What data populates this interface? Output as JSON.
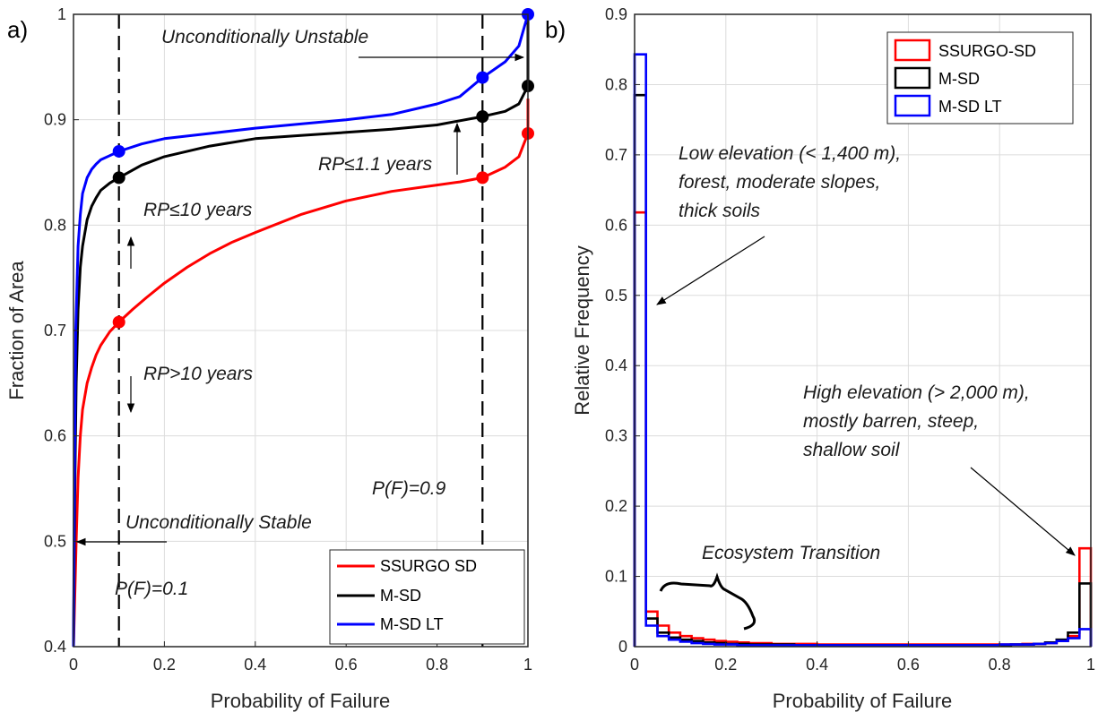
{
  "chart_data": [
    {
      "panel_label": "a)",
      "type": "line",
      "xlabel": "Probability of Failure",
      "ylabel": "Fraction of Area",
      "xlim": [
        0,
        1
      ],
      "ylim": [
        0.4,
        1
      ],
      "xticks": [
        0,
        0.2,
        0.4,
        0.6,
        0.8,
        1
      ],
      "xtick_labels": [
        "0",
        "0.2",
        "0.4",
        "0.6",
        "0.8",
        "1"
      ],
      "yticks": [
        0.4,
        0.5,
        0.6,
        0.7,
        0.8,
        0.9,
        1
      ],
      "ytick_labels": [
        "0.4",
        "0.5",
        "0.6",
        "0.7",
        "0.8",
        "0.9",
        "1"
      ],
      "grid": true,
      "legend_position": "bottom-right",
      "series": [
        {
          "name": "SSURGO SD",
          "color": "#ff0000",
          "x": [
            0,
            0.003,
            0.006,
            0.01,
            0.015,
            0.02,
            0.03,
            0.04,
            0.05,
            0.06,
            0.08,
            0.1,
            0.13,
            0.16,
            0.2,
            0.25,
            0.3,
            0.35,
            0.4,
            0.5,
            0.6,
            0.7,
            0.8,
            0.85,
            0.9,
            0.95,
            0.98,
            1,
            1
          ],
          "y": [
            0.4,
            0.45,
            0.5,
            0.56,
            0.6,
            0.625,
            0.65,
            0.665,
            0.677,
            0.686,
            0.699,
            0.708,
            0.72,
            0.731,
            0.745,
            0.76,
            0.773,
            0.784,
            0.793,
            0.81,
            0.823,
            0.832,
            0.838,
            0.841,
            0.845,
            0.855,
            0.865,
            0.887,
            0.92
          ],
          "markers": [
            {
              "x": 0.1,
              "y": 0.708
            },
            {
              "x": 0.9,
              "y": 0.845
            },
            {
              "x": 1,
              "y": 0.887
            }
          ]
        },
        {
          "name": "M-SD",
          "color": "#000000",
          "x": [
            0,
            0.003,
            0.006,
            0.01,
            0.015,
            0.02,
            0.03,
            0.04,
            0.05,
            0.06,
            0.08,
            0.1,
            0.15,
            0.2,
            0.3,
            0.4,
            0.5,
            0.6,
            0.7,
            0.8,
            0.9,
            0.95,
            0.98,
            1,
            1
          ],
          "y": [
            0.4,
            0.55,
            0.65,
            0.72,
            0.76,
            0.78,
            0.805,
            0.818,
            0.826,
            0.833,
            0.84,
            0.845,
            0.857,
            0.865,
            0.875,
            0.882,
            0.885,
            0.888,
            0.891,
            0.895,
            0.903,
            0.908,
            0.915,
            0.932,
            1
          ],
          "markers": [
            {
              "x": 0.1,
              "y": 0.845
            },
            {
              "x": 0.9,
              "y": 0.903
            },
            {
              "x": 1,
              "y": 0.932
            }
          ]
        },
        {
          "name": "M-SD LT",
          "color": "#0000ff",
          "x": [
            0,
            0.002,
            0.005,
            0.01,
            0.015,
            0.02,
            0.03,
            0.04,
            0.05,
            0.06,
            0.08,
            0.1,
            0.15,
            0.2,
            0.3,
            0.4,
            0.5,
            0.6,
            0.7,
            0.8,
            0.85,
            0.9,
            0.95,
            0.98,
            1
          ],
          "y": [
            0.4,
            0.55,
            0.7,
            0.78,
            0.81,
            0.83,
            0.845,
            0.853,
            0.858,
            0.862,
            0.866,
            0.87,
            0.877,
            0.882,
            0.887,
            0.892,
            0.896,
            0.9,
            0.905,
            0.915,
            0.922,
            0.94,
            0.955,
            0.97,
            1
          ],
          "markers": [
            {
              "x": 0.1,
              "y": 0.87
            },
            {
              "x": 0.9,
              "y": 0.94
            },
            {
              "x": 1,
              "y": 1
            }
          ]
        }
      ],
      "vlines": [
        {
          "x": 0.1,
          "label": "P(F)=0.1"
        },
        {
          "x": 0.9,
          "label": "P(F)=0.9"
        }
      ],
      "annotations": {
        "unconditionally_unstable": "Unconditionally Unstable",
        "unconditionally_stable": "Unconditionally Stable",
        "rp_le_10": "RP≤10 years",
        "rp_gt_10": "RP>10 years",
        "rp_le_1_1": "RP≤1.1 years"
      }
    },
    {
      "panel_label": "b)",
      "type": "bar",
      "subtype": "histogram-stairs",
      "xlabel": "Probability of Failure",
      "ylabel": "Relative Frequency",
      "xlim": [
        0,
        1
      ],
      "ylim": [
        0,
        0.9
      ],
      "xticks": [
        0,
        0.2,
        0.4,
        0.6,
        0.8,
        1
      ],
      "xtick_labels": [
        "0",
        "0.2",
        "0.4",
        "0.6",
        "0.8",
        "1"
      ],
      "yticks": [
        0,
        0.1,
        0.2,
        0.3,
        0.4,
        0.5,
        0.6,
        0.7,
        0.8,
        0.9
      ],
      "ytick_labels": [
        "0",
        "0.1",
        "0.2",
        "0.3",
        "0.4",
        "0.5",
        "0.6",
        "0.7",
        "0.8",
        "0.9"
      ],
      "grid": true,
      "legend_position": "top-right",
      "bin_width": 0.025,
      "series": [
        {
          "name": "SSURGO-SD",
          "color": "#ff0000",
          "values": [
            0.618,
            0.05,
            0.03,
            0.02,
            0.015,
            0.012,
            0.01,
            0.008,
            0.007,
            0.006,
            0.005,
            0.005,
            0.004,
            0.004,
            0.004,
            0.004,
            0.003,
            0.003,
            0.003,
            0.003,
            0.003,
            0.003,
            0.003,
            0.003,
            0.003,
            0.003,
            0.003,
            0.003,
            0.003,
            0.003,
            0.003,
            0.003,
            0.003,
            0.003,
            0.004,
            0.004,
            0.005,
            0.008,
            0.015,
            0.14
          ]
        },
        {
          "name": "M-SD",
          "color": "#000000",
          "values": [
            0.785,
            0.04,
            0.02,
            0.013,
            0.01,
            0.008,
            0.006,
            0.005,
            0.004,
            0.004,
            0.003,
            0.003,
            0.003,
            0.003,
            0.002,
            0.002,
            0.002,
            0.002,
            0.002,
            0.002,
            0.002,
            0.002,
            0.002,
            0.002,
            0.002,
            0.002,
            0.002,
            0.002,
            0.002,
            0.002,
            0.002,
            0.002,
            0.002,
            0.003,
            0.003,
            0.004,
            0.006,
            0.01,
            0.02,
            0.09
          ]
        },
        {
          "name": "M-SD LT",
          "color": "#0000ff",
          "values": [
            0.843,
            0.03,
            0.015,
            0.01,
            0.007,
            0.005,
            0.004,
            0.003,
            0.003,
            0.002,
            0.002,
            0.002,
            0.002,
            0.002,
            0.002,
            0.002,
            0.002,
            0.002,
            0.002,
            0.002,
            0.002,
            0.002,
            0.002,
            0.002,
            0.002,
            0.002,
            0.002,
            0.002,
            0.002,
            0.002,
            0.002,
            0.002,
            0.003,
            0.003,
            0.003,
            0.004,
            0.005,
            0.008,
            0.012,
            0.025
          ]
        }
      ],
      "annotations": {
        "low_elevation": [
          "Low elevation (< 1,400 m),",
          "forest, moderate slopes,",
          "thick soils"
        ],
        "high_elevation": [
          "High elevation (> 2,000 m),",
          "mostly barren, steep,",
          "shallow soil"
        ],
        "ecosystem_transition": "Ecosystem Transition"
      }
    }
  ]
}
